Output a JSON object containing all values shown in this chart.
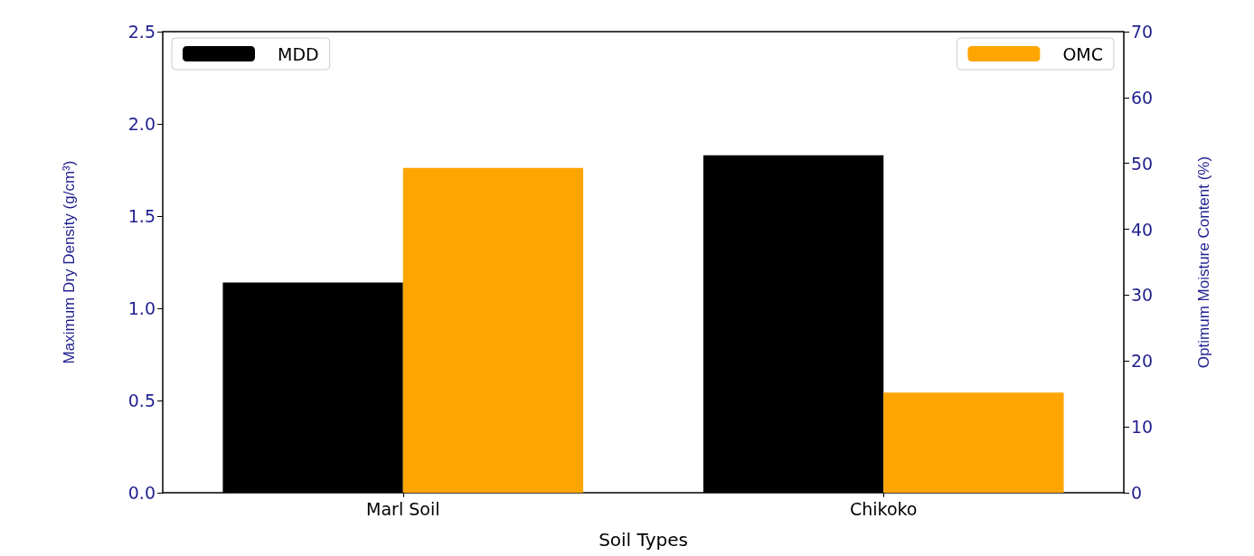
{
  "chart_data": {
    "type": "bar",
    "xlabel": "Soil Types",
    "ylabel": "Maximum Dry Density (g/cm³)",
    "y2label": "Optimum Moisture Content (%)",
    "categories": [
      "Marl Soil",
      "Chikoko"
    ],
    "series": [
      {
        "name": "MDD",
        "color": "#000000",
        "values": [
          1.14,
          1.83
        ]
      },
      {
        "name": "OMC",
        "color": "#ffa500",
        "values": [
          49.3,
          15.2
        ],
        "axis": "y2"
      }
    ],
    "ylim": [
      0,
      2.5
    ],
    "yticks": [
      {
        "value": 0,
        "label": "0.0"
      },
      0.5,
      {
        "value": 1,
        "label": "1.0"
      },
      1.5,
      {
        "value": 2,
        "label": "2.0"
      },
      2.5
    ],
    "y2lim": [
      0,
      70
    ],
    "y2ticks": [
      0,
      10,
      20,
      30,
      40,
      50,
      60,
      70
    ],
    "legend": "top",
    "grid": false
  }
}
